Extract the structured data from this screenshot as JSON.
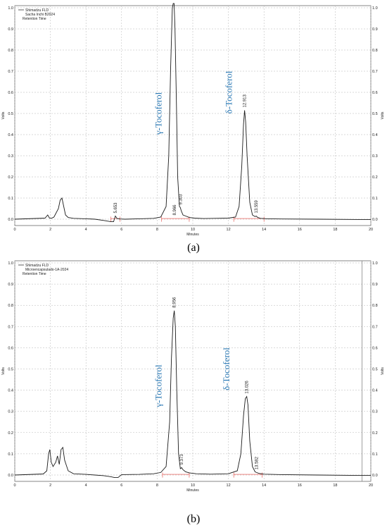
{
  "chart_data": [
    {
      "type": "line",
      "panel_label": "(a)",
      "legend": {
        "detector": "Shimadzu FLD",
        "sample": "Sacha Inchi B2024",
        "extra": "Retention Time"
      },
      "xlabel": "Minutes",
      "ylabel": "Volts",
      "xlim": [
        0,
        20
      ],
      "ylim": [
        -0.05,
        1.0
      ],
      "xticks": [
        0,
        2,
        4,
        6,
        8,
        10,
        12,
        14,
        16,
        18,
        20
      ],
      "yticks": [
        0.0,
        0.1,
        0.2,
        0.3,
        0.4,
        0.5,
        0.6,
        0.7,
        0.8,
        0.9,
        1.0
      ],
      "grid": true,
      "series": [
        {
          "x": [
            0,
            1.7,
            1.85,
            1.95,
            2.05,
            2.2,
            2.45,
            2.55,
            2.65,
            2.75,
            2.85,
            3.0,
            3.3,
            4.0,
            4.5,
            5.0,
            5.4,
            5.55,
            5.65,
            5.75,
            5.9,
            6.2,
            7.0,
            7.8,
            8.2,
            8.5,
            8.65,
            8.75,
            8.85,
            8.9,
            8.95,
            9.0,
            9.08,
            9.15,
            9.25,
            9.3,
            9.35,
            9.45,
            9.6,
            9.8,
            10.1,
            10.6,
            11.2,
            12.0,
            12.4,
            12.6,
            12.75,
            12.85,
            12.91,
            12.97,
            13.05,
            13.2,
            13.35,
            13.5,
            13.56,
            13.65,
            13.8,
            14.2,
            15.0,
            17.0,
            20.0
          ],
          "y": [
            0.0,
            0.005,
            0.02,
            0.005,
            0.004,
            0.01,
            0.05,
            0.09,
            0.1,
            0.06,
            0.02,
            0.008,
            0.004,
            0.002,
            0.0,
            -0.006,
            -0.012,
            -0.012,
            0.015,
            0.003,
            0.001,
            0.0,
            0.002,
            0.004,
            0.01,
            0.06,
            0.3,
            0.7,
            1.0,
            1.02,
            1.02,
            0.9,
            0.55,
            0.2,
            0.06,
            0.055,
            0.04,
            0.02,
            0.015,
            0.008,
            0.005,
            0.003,
            0.004,
            0.005,
            0.01,
            0.06,
            0.25,
            0.45,
            0.515,
            0.46,
            0.3,
            0.08,
            0.02,
            0.012,
            0.015,
            0.008,
            0.004,
            0.002,
            0.001,
            0.0,
            -0.002
          ]
        }
      ],
      "peak_labels": [
        {
          "text": "5.653",
          "x": 5.65,
          "y": 0.015
        },
        {
          "text": "8.966",
          "x": 8.97,
          "y": 0.005
        },
        {
          "text": "9.303",
          "x": 9.3,
          "y": 0.055
        },
        {
          "text": "12.913",
          "x": 12.91,
          "y": 0.515
        },
        {
          "text": "13.559",
          "x": 13.56,
          "y": 0.015
        }
      ],
      "compounds": [
        {
          "text": "γ-Tocoferol",
          "x": 8.25,
          "y": 0.5
        },
        {
          "text": "δ-Tocoferol",
          "x": 12.2,
          "y": 0.6
        }
      ]
    },
    {
      "type": "line",
      "panel_label": "(b)",
      "legend": {
        "detector": "Shimadzu FLD",
        "sample": "Microencapsulado-1A-2024",
        "extra": "Retention Time"
      },
      "xlabel": "Minutes",
      "ylabel": "Volts",
      "xlim": [
        0,
        20
      ],
      "ylim": [
        -0.05,
        1.0
      ],
      "xticks": [
        0,
        2,
        4,
        6,
        8,
        10,
        12,
        14,
        16,
        18,
        20
      ],
      "yticks": [
        0.0,
        0.1,
        0.2,
        0.3,
        0.4,
        0.5,
        0.6,
        0.7,
        0.8,
        0.9,
        1.0
      ],
      "grid": true,
      "series": [
        {
          "x": [
            0,
            1.6,
            1.8,
            1.9,
            1.97,
            2.05,
            2.15,
            2.3,
            2.4,
            2.5,
            2.6,
            2.7,
            2.8,
            3.0,
            3.3,
            4.0,
            4.5,
            5.0,
            5.4,
            5.6,
            5.8,
            6.0,
            7.0,
            7.8,
            8.2,
            8.5,
            8.7,
            8.8,
            8.9,
            8.96,
            9.02,
            9.1,
            9.2,
            9.3,
            9.37,
            9.45,
            9.6,
            9.8,
            10.2,
            11.0,
            12.0,
            12.5,
            12.7,
            12.85,
            12.95,
            13.03,
            13.1,
            13.2,
            13.35,
            13.5,
            13.58,
            13.7,
            14.0,
            15.0,
            17.0,
            19.5,
            20.0
          ],
          "y": [
            0.0,
            0.005,
            0.02,
            0.1,
            0.12,
            0.06,
            0.04,
            0.06,
            0.09,
            0.05,
            0.12,
            0.13,
            0.07,
            0.02,
            0.006,
            0.003,
            0.0,
            -0.003,
            -0.008,
            -0.012,
            -0.012,
            0.002,
            0.003,
            0.006,
            0.012,
            0.04,
            0.25,
            0.55,
            0.74,
            0.775,
            0.7,
            0.4,
            0.1,
            0.03,
            0.035,
            0.025,
            0.015,
            0.01,
            0.006,
            0.004,
            0.006,
            0.02,
            0.1,
            0.28,
            0.36,
            0.37,
            0.33,
            0.16,
            0.04,
            0.015,
            0.012,
            0.008,
            0.004,
            0.002,
            0.0,
            -0.002,
            -0.002
          ]
        }
      ],
      "peak_labels": [
        {
          "text": "8.956",
          "x": 8.96,
          "y": 0.775
        },
        {
          "text": "9.373",
          "x": 9.37,
          "y": 0.035
        },
        {
          "text": "13.026",
          "x": 13.03,
          "y": 0.37
        },
        {
          "text": "13.582",
          "x": 13.58,
          "y": 0.012
        }
      ],
      "compounds": [
        {
          "text": "γ-Tocoferol",
          "x": 8.25,
          "y": 0.42
        },
        {
          "text": "δ-Tocoferol",
          "x": 12.05,
          "y": 0.5
        }
      ]
    }
  ]
}
